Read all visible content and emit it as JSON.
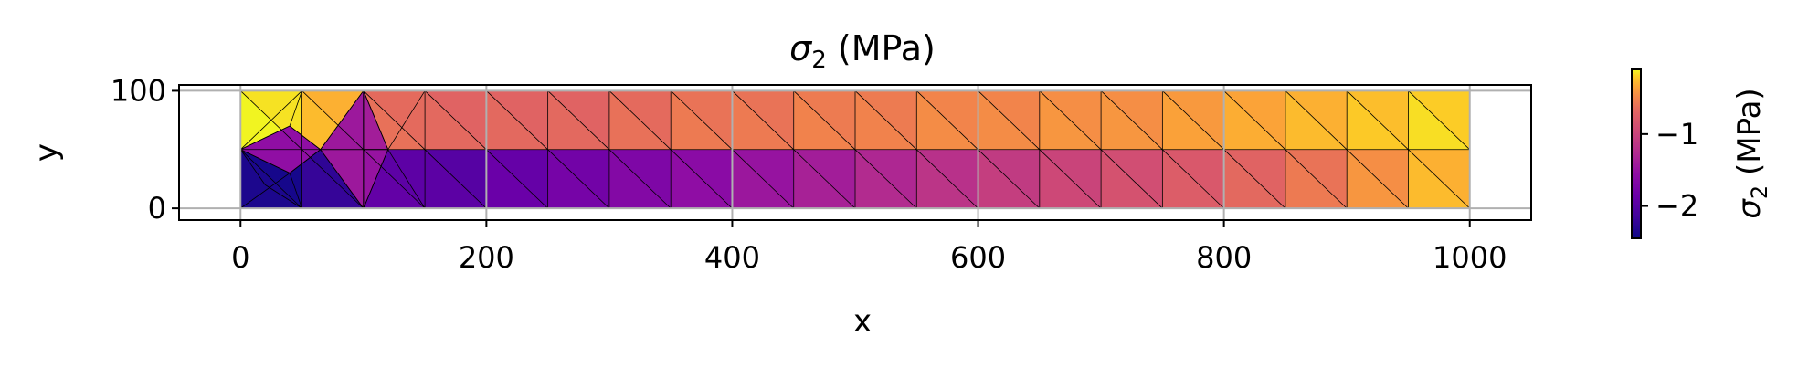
{
  "chart_data": {
    "type": "heatmap",
    "title_symbol": "σ",
    "title_subscript": "2",
    "title_units": " (MPa)",
    "xlabel": "x",
    "ylabel": "y",
    "xlim": [
      -50,
      1050
    ],
    "ylim": [
      -10,
      105
    ],
    "xticks": [
      0,
      200,
      400,
      600,
      800,
      1000
    ],
    "yticks": [
      0,
      100
    ],
    "grid": true,
    "mesh_domain": {
      "x": [
        0,
        1000
      ],
      "y": [
        0,
        100
      ]
    },
    "colormap": "plasma",
    "colorbar": {
      "label_symbol": "σ",
      "label_subscript": "2",
      "label_units": " (MPa)",
      "range": [
        -2.45,
        -0.1
      ],
      "ticks": [
        -1,
        -2
      ],
      "tick_labels": [
        "−1",
        "−2"
      ]
    },
    "regions": [
      {
        "x": [
          0,
          50
        ],
        "y": [
          0,
          50
        ],
        "value": -2.4
      },
      {
        "x": [
          0,
          50
        ],
        "y": [
          50,
          100
        ],
        "value": -0.15
      },
      {
        "x": [
          50,
          100
        ],
        "y": [
          0,
          50
        ],
        "value": -2.25
      },
      {
        "x": [
          50,
          100
        ],
        "y": [
          50,
          100
        ],
        "value": -0.3
      },
      {
        "x": [
          100,
          150
        ],
        "y": [
          0,
          50
        ],
        "value": -1.95
      },
      {
        "x": [
          100,
          150
        ],
        "y": [
          50,
          100
        ],
        "value": -0.65
      },
      {
        "x": [
          150,
          200
        ],
        "y": [
          0,
          50
        ],
        "value": -2.0
      },
      {
        "x": [
          150,
          200
        ],
        "y": [
          50,
          100
        ],
        "value": -0.7
      },
      {
        "x": [
          200,
          250
        ],
        "y": [
          0,
          50
        ],
        "value": -1.9
      },
      {
        "x": [
          200,
          250
        ],
        "y": [
          50,
          100
        ],
        "value": -0.7
      },
      {
        "x": [
          250,
          300
        ],
        "y": [
          0,
          50
        ],
        "value": -1.8
      },
      {
        "x": [
          250,
          300
        ],
        "y": [
          50,
          100
        ],
        "value": -0.7
      },
      {
        "x": [
          300,
          350
        ],
        "y": [
          0,
          50
        ],
        "value": -1.7
      },
      {
        "x": [
          300,
          350
        ],
        "y": [
          50,
          100
        ],
        "value": -0.65
      },
      {
        "x": [
          350,
          400
        ],
        "y": [
          0,
          50
        ],
        "value": -1.6
      },
      {
        "x": [
          350,
          400
        ],
        "y": [
          50,
          100
        ],
        "value": -0.6
      },
      {
        "x": [
          400,
          450
        ],
        "y": [
          0,
          50
        ],
        "value": -1.5
      },
      {
        "x": [
          400,
          450
        ],
        "y": [
          50,
          100
        ],
        "value": -0.6
      },
      {
        "x": [
          450,
          500
        ],
        "y": [
          0,
          50
        ],
        "value": -1.4
      },
      {
        "x": [
          450,
          500
        ],
        "y": [
          50,
          100
        ],
        "value": -0.55
      },
      {
        "x": [
          500,
          550
        ],
        "y": [
          0,
          50
        ],
        "value": -1.3
      },
      {
        "x": [
          500,
          550
        ],
        "y": [
          50,
          100
        ],
        "value": -0.55
      },
      {
        "x": [
          550,
          600
        ],
        "y": [
          0,
          50
        ],
        "value": -1.2
      },
      {
        "x": [
          550,
          600
        ],
        "y": [
          50,
          100
        ],
        "value": -0.5
      },
      {
        "x": [
          600,
          650
        ],
        "y": [
          0,
          50
        ],
        "value": -1.1
      },
      {
        "x": [
          600,
          650
        ],
        "y": [
          50,
          100
        ],
        "value": -0.5
      },
      {
        "x": [
          650,
          700
        ],
        "y": [
          0,
          50
        ],
        "value": -1.0
      },
      {
        "x": [
          650,
          700
        ],
        "y": [
          50,
          100
        ],
        "value": -0.45
      },
      {
        "x": [
          700,
          750
        ],
        "y": [
          0,
          50
        ],
        "value": -0.9
      },
      {
        "x": [
          700,
          750
        ],
        "y": [
          50,
          100
        ],
        "value": -0.45
      },
      {
        "x": [
          750,
          800
        ],
        "y": [
          0,
          50
        ],
        "value": -0.8
      },
      {
        "x": [
          750,
          800
        ],
        "y": [
          50,
          100
        ],
        "value": -0.4
      },
      {
        "x": [
          800,
          850
        ],
        "y": [
          0,
          50
        ],
        "value": -0.7
      },
      {
        "x": [
          800,
          850
        ],
        "y": [
          50,
          100
        ],
        "value": -0.35
      },
      {
        "x": [
          850,
          900
        ],
        "y": [
          0,
          50
        ],
        "value": -0.6
      },
      {
        "x": [
          850,
          900
        ],
        "y": [
          50,
          100
        ],
        "value": -0.3
      },
      {
        "x": [
          900,
          950
        ],
        "y": [
          0,
          50
        ],
        "value": -0.45
      },
      {
        "x": [
          900,
          950
        ],
        "y": [
          50,
          100
        ],
        "value": -0.25
      },
      {
        "x": [
          950,
          1000
        ],
        "y": [
          0,
          50
        ],
        "value": -0.3
      },
      {
        "x": [
          950,
          1000
        ],
        "y": [
          50,
          100
        ],
        "value": -0.2
      }
    ],
    "patches": [
      {
        "points": [
          [
            0,
            50
          ],
          [
            40,
            30
          ],
          [
            65,
            50
          ],
          [
            40,
            70
          ]
        ],
        "value": -1.55
      },
      {
        "points": [
          [
            65,
            50
          ],
          [
            100,
            100
          ],
          [
            120,
            50
          ],
          [
            100,
            0
          ]
        ],
        "value": -1.45
      },
      {
        "points": [
          [
            100,
            50
          ],
          [
            120,
            50
          ],
          [
            100,
            100
          ]
        ],
        "value": -1.4
      },
      {
        "points": [
          [
            100,
            0
          ],
          [
            120,
            50
          ],
          [
            100,
            50
          ]
        ],
        "value": -1.5
      }
    ],
    "mesh_lines": [
      [
        [
          0,
          50
        ],
        [
          50,
          100
        ]
      ],
      [
        [
          0,
          50
        ],
        [
          40,
          70
        ]
      ],
      [
        [
          40,
          70
        ],
        [
          50,
          100
        ]
      ],
      [
        [
          40,
          70
        ],
        [
          65,
          50
        ]
      ],
      [
        [
          65,
          50
        ],
        [
          100,
          100
        ]
      ],
      [
        [
          65,
          50
        ],
        [
          40,
          30
        ]
      ],
      [
        [
          0,
          50
        ],
        [
          40,
          30
        ]
      ],
      [
        [
          40,
          30
        ],
        [
          0,
          0
        ]
      ],
      [
        [
          40,
          30
        ],
        [
          50,
          0
        ]
      ],
      [
        [
          40,
          30
        ],
        [
          65,
          50
        ]
      ],
      [
        [
          65,
          50
        ],
        [
          100,
          0
        ]
      ],
      [
        [
          0,
          50
        ],
        [
          20,
          20
        ]
      ],
      [
        [
          20,
          20
        ],
        [
          50,
          0
        ]
      ],
      [
        [
          100,
          0
        ],
        [
          120,
          50
        ]
      ],
      [
        [
          100,
          100
        ],
        [
          120,
          50
        ]
      ],
      [
        [
          65,
          50
        ],
        [
          120,
          50
        ]
      ],
      [
        [
          120,
          50
        ],
        [
          150,
          100
        ]
      ],
      [
        [
          120,
          50
        ],
        [
          150,
          0
        ]
      ],
      [
        [
          100,
          0
        ],
        [
          100,
          100
        ]
      ]
    ]
  }
}
